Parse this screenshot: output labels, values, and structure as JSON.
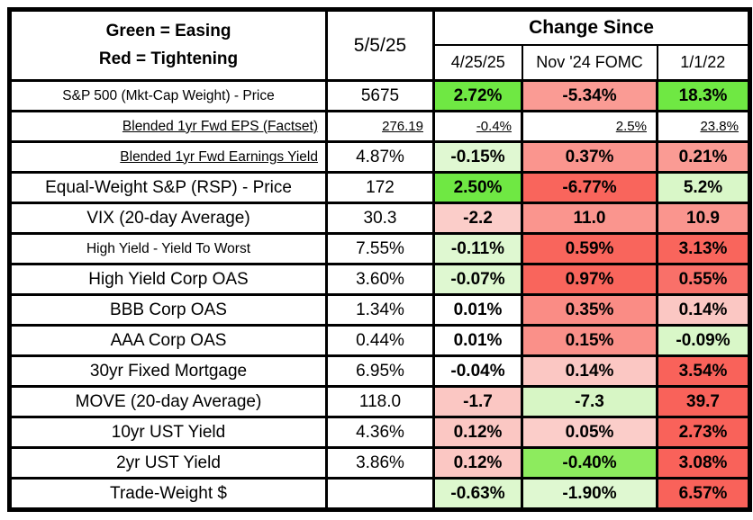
{
  "chart_data": {
    "type": "table",
    "legend": {
      "line1": "Green = Easing",
      "line2": "Red = Tightening",
      "green_color": "#6FE843",
      "red_color": "#F9625A"
    },
    "as_of_date": "5/5/25",
    "change_since_label": "Change Since",
    "change_columns": [
      "4/25/25",
      "Nov '24 FOMC",
      "1/1/22"
    ],
    "rows": [
      {
        "label": "S&P 500 (Mkt-Cap Weight) - Price",
        "current": "5675",
        "changes": [
          {
            "value": "2.72%",
            "bg": "#6FE843"
          },
          {
            "value": "-5.34%",
            "bg": "#FA9B94"
          },
          {
            "value": "18.3%",
            "bg": "#6FE843"
          }
        ]
      },
      {
        "label": "Blended 1yr Fwd EPS (Factset)",
        "current": "276.19",
        "changes": [
          {
            "value": "-0.4%",
            "bg": ""
          },
          {
            "value": "2.5%",
            "bg": ""
          },
          {
            "value": "23.8%",
            "bg": ""
          }
        ]
      },
      {
        "label": "Blended 1yr Fwd Earnings Yield",
        "current": "4.87%",
        "changes": [
          {
            "value": "-0.15%",
            "bg": "#E0F8D2"
          },
          {
            "value": "0.37%",
            "bg": "#FA958E"
          },
          {
            "value": "0.21%",
            "bg": "#FA9B94"
          }
        ]
      },
      {
        "label": "Equal-Weight S&P (RSP) - Price",
        "current": "172",
        "changes": [
          {
            "value": "2.50%",
            "bg": "#6FE843"
          },
          {
            "value": "-6.77%",
            "bg": "#F9655C"
          },
          {
            "value": "5.2%",
            "bg": "#D9F7C8"
          }
        ]
      },
      {
        "label": "VIX (20-day Average)",
        "current": "30.3",
        "changes": [
          {
            "value": "-2.2",
            "bg": "#FBCDC9"
          },
          {
            "value": "11.0",
            "bg": "#FA958E"
          },
          {
            "value": "10.9",
            "bg": "#FA958E"
          }
        ]
      },
      {
        "label": "High Yield - Yield To Worst",
        "current": "7.55%",
        "changes": [
          {
            "value": "-0.11%",
            "bg": "#DFF8D1"
          },
          {
            "value": "0.59%",
            "bg": "#F9655C"
          },
          {
            "value": "3.13%",
            "bg": "#F9655C"
          }
        ]
      },
      {
        "label": "High Yield Corp OAS",
        "current": "3.60%",
        "changes": [
          {
            "value": "-0.07%",
            "bg": "#DFF8D1"
          },
          {
            "value": "0.97%",
            "bg": "#F9655C"
          },
          {
            "value": "0.55%",
            "bg": "#F97069"
          }
        ]
      },
      {
        "label": "BBB Corp OAS",
        "current": "1.34%",
        "changes": [
          {
            "value": "0.01%",
            "bg": ""
          },
          {
            "value": "0.35%",
            "bg": "#FA8C85"
          },
          {
            "value": "0.14%",
            "bg": "#FBC7C3"
          }
        ]
      },
      {
        "label": "AAA Corp OAS",
        "current": "0.44%",
        "changes": [
          {
            "value": "0.01%",
            "bg": ""
          },
          {
            "value": "0.15%",
            "bg": "#FA9089"
          },
          {
            "value": "-0.09%",
            "bg": "#D9F7C8"
          }
        ]
      },
      {
        "label": "30yr Fixed Mortgage",
        "current": "6.95%",
        "changes": [
          {
            "value": "-0.04%",
            "bg": ""
          },
          {
            "value": "0.14%",
            "bg": "#FBC7C3"
          },
          {
            "value": "3.54%",
            "bg": "#F9625A"
          }
        ]
      },
      {
        "label": "MOVE (20-day Average)",
        "current": "118.0",
        "changes": [
          {
            "value": "-1.7",
            "bg": "#FBC7C3"
          },
          {
            "value": "-7.3",
            "bg": "#D7F6C5"
          },
          {
            "value": "39.7",
            "bg": "#F9625A"
          }
        ]
      },
      {
        "label": "10yr UST Yield",
        "current": "4.36%",
        "changes": [
          {
            "value": "0.12%",
            "bg": "#FBC7C3"
          },
          {
            "value": "0.05%",
            "bg": "#FBCDC9"
          },
          {
            "value": "2.73%",
            "bg": "#F9625A"
          }
        ]
      },
      {
        "label": "2yr UST Yield",
        "current": "3.86%",
        "changes": [
          {
            "value": "0.12%",
            "bg": "#FBC7C3"
          },
          {
            "value": "-0.40%",
            "bg": "#8DEB5E"
          },
          {
            "value": "3.08%",
            "bg": "#F9625A"
          }
        ]
      },
      {
        "label": "Trade-Weight $",
        "current": "",
        "changes": [
          {
            "value": "-0.63%",
            "bg": "#DDF8CE"
          },
          {
            "value": "-1.90%",
            "bg": "#DFF8D1"
          },
          {
            "value": "6.57%",
            "bg": "#F9625A"
          }
        ]
      }
    ]
  }
}
